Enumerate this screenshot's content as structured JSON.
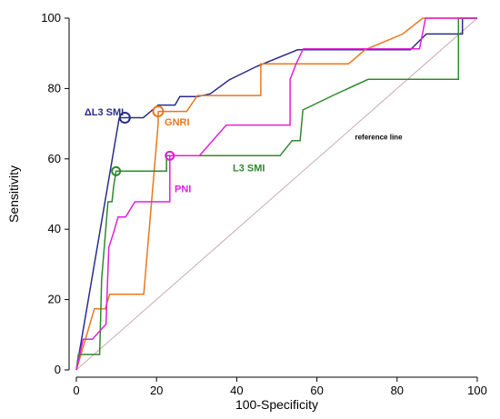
{
  "chart_data": {
    "type": "line",
    "title": "",
    "xlabel": "100-Specificity",
    "ylabel": "Sensitivity",
    "xlim": [
      0,
      100
    ],
    "ylim": [
      0,
      100
    ],
    "xticks": [
      0,
      20,
      40,
      60,
      80,
      100
    ],
    "yticks": [
      0,
      20,
      40,
      60,
      80,
      100
    ],
    "grid": false,
    "reference_line": {
      "label": "reference line",
      "from": [
        0,
        0
      ],
      "to": [
        100,
        100
      ],
      "color": "#c8a8b8"
    },
    "series": [
      {
        "name": "ΔL3 SMI",
        "color": "#2b2b8c",
        "x": [
          0,
          10.7,
          12.1,
          16.7,
          20.4,
          24.6,
          25.8,
          30.2,
          33.4,
          38.2,
          45.0,
          55.2,
          83.3,
          87.3,
          96.3,
          96.3,
          100
        ],
        "y": [
          0,
          71.7,
          71.7,
          71.7,
          75.3,
          75.3,
          77.7,
          77.7,
          78.5,
          82.5,
          86.3,
          91.0,
          91.0,
          95.5,
          95.5,
          100,
          100
        ],
        "optimal_point": [
          12.1,
          71.7
        ]
      },
      {
        "name": "GNRI",
        "color": "#e8781e",
        "x": [
          0,
          3.5,
          4.5,
          6.6,
          7.2,
          8.3,
          8.8,
          15.8,
          16.8,
          20.4,
          20.4,
          25.8,
          27.5,
          30.2,
          34.2,
          46.0,
          46.0,
          67.9,
          72.0,
          81.4,
          86.4,
          93.5,
          100
        ],
        "y": [
          0,
          13.5,
          17.4,
          17.4,
          17.4,
          21.5,
          21.5,
          21.5,
          21.5,
          70.0,
          73.5,
          73.5,
          73.5,
          78.0,
          78.0,
          78.0,
          87.0,
          87.0,
          91.0,
          95.5,
          100,
          100,
          100
        ],
        "optimal_point": [
          20.4,
          73.5
        ]
      },
      {
        "name": "L3 SMI",
        "color": "#2e8a2e",
        "x": [
          0,
          0.5,
          2.3,
          5.8,
          6.3,
          7.9,
          8.9,
          9.3,
          9.9,
          10.2,
          22.5,
          22.5,
          42.5,
          50.8,
          53.8,
          55.8,
          56.5,
          64.5,
          72.8,
          95.3,
          95.3,
          100
        ],
        "y": [
          0,
          4.4,
          4.4,
          4.4,
          25.8,
          47.8,
          47.8,
          52.2,
          56.5,
          56.5,
          56.5,
          60.9,
          60.9,
          60.9,
          65.2,
          65.2,
          73.9,
          78.3,
          82.6,
          82.6,
          100,
          100
        ],
        "optimal_point": [
          9.9,
          56.5
        ]
      },
      {
        "name": "PNI",
        "color": "#e020d8",
        "x": [
          0,
          1.7,
          4.0,
          4.0,
          7.4,
          8.1,
          9.3,
          10.4,
          12.3,
          14.6,
          23.3,
          23.3,
          30.7,
          37.4,
          53.3,
          53.3,
          54.8,
          56.6,
          85.6,
          87.1,
          100
        ],
        "y": [
          0,
          8.7,
          8.7,
          8.7,
          13.0,
          34.8,
          39.1,
          43.5,
          43.5,
          47.8,
          47.8,
          60.9,
          60.9,
          69.6,
          69.6,
          82.6,
          87.0,
          91.3,
          91.3,
          100,
          100
        ],
        "optimal_point": [
          23.3,
          60.9
        ]
      }
    ],
    "annotations": [
      {
        "text": "ΔL3 SMI",
        "color": "#2b2b8c",
        "x": 2.0,
        "y": 72.4,
        "size": 11
      },
      {
        "text": "GNRI",
        "color": "#e8781e",
        "x": 22.0,
        "y": 69.5,
        "size": 11
      },
      {
        "text": "L3 SMI",
        "color": "#2e8a2e",
        "x": 39.0,
        "y": 56.4,
        "size": 11
      },
      {
        "text": "PNI",
        "color": "#e020d8",
        "x": 24.5,
        "y": 50.5,
        "size": 11
      }
    ]
  }
}
